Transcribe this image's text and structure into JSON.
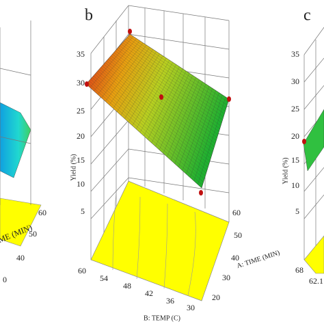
{
  "panels": [
    {
      "a_ticks": [
        60,
        50,
        40
      ],
      "a_label": "A: TIME (MIN)",
      "b_ticks": [
        0
      ]
    },
    {
      "label": "b",
      "y_label": "Yield (%)",
      "y_ticks": [
        35,
        30,
        25,
        20,
        15,
        10,
        5
      ],
      "a_ticks": [
        60,
        50,
        40,
        30,
        20
      ],
      "a_label": "A: TIME (MIN)",
      "b_ticks": [
        60,
        54,
        48,
        42,
        36,
        30
      ],
      "b_label": "B: TEMP (C)"
    },
    {
      "label": "c",
      "y_label": "Yield (%)",
      "y_ticks": [
        35,
        30,
        25,
        20,
        15,
        10,
        5
      ],
      "b_ticks": [
        {
          "value": 68,
          "label": "68"
        },
        {
          "value": 62.1,
          "label": "62.1"
        }
      ]
    }
  ]
}
